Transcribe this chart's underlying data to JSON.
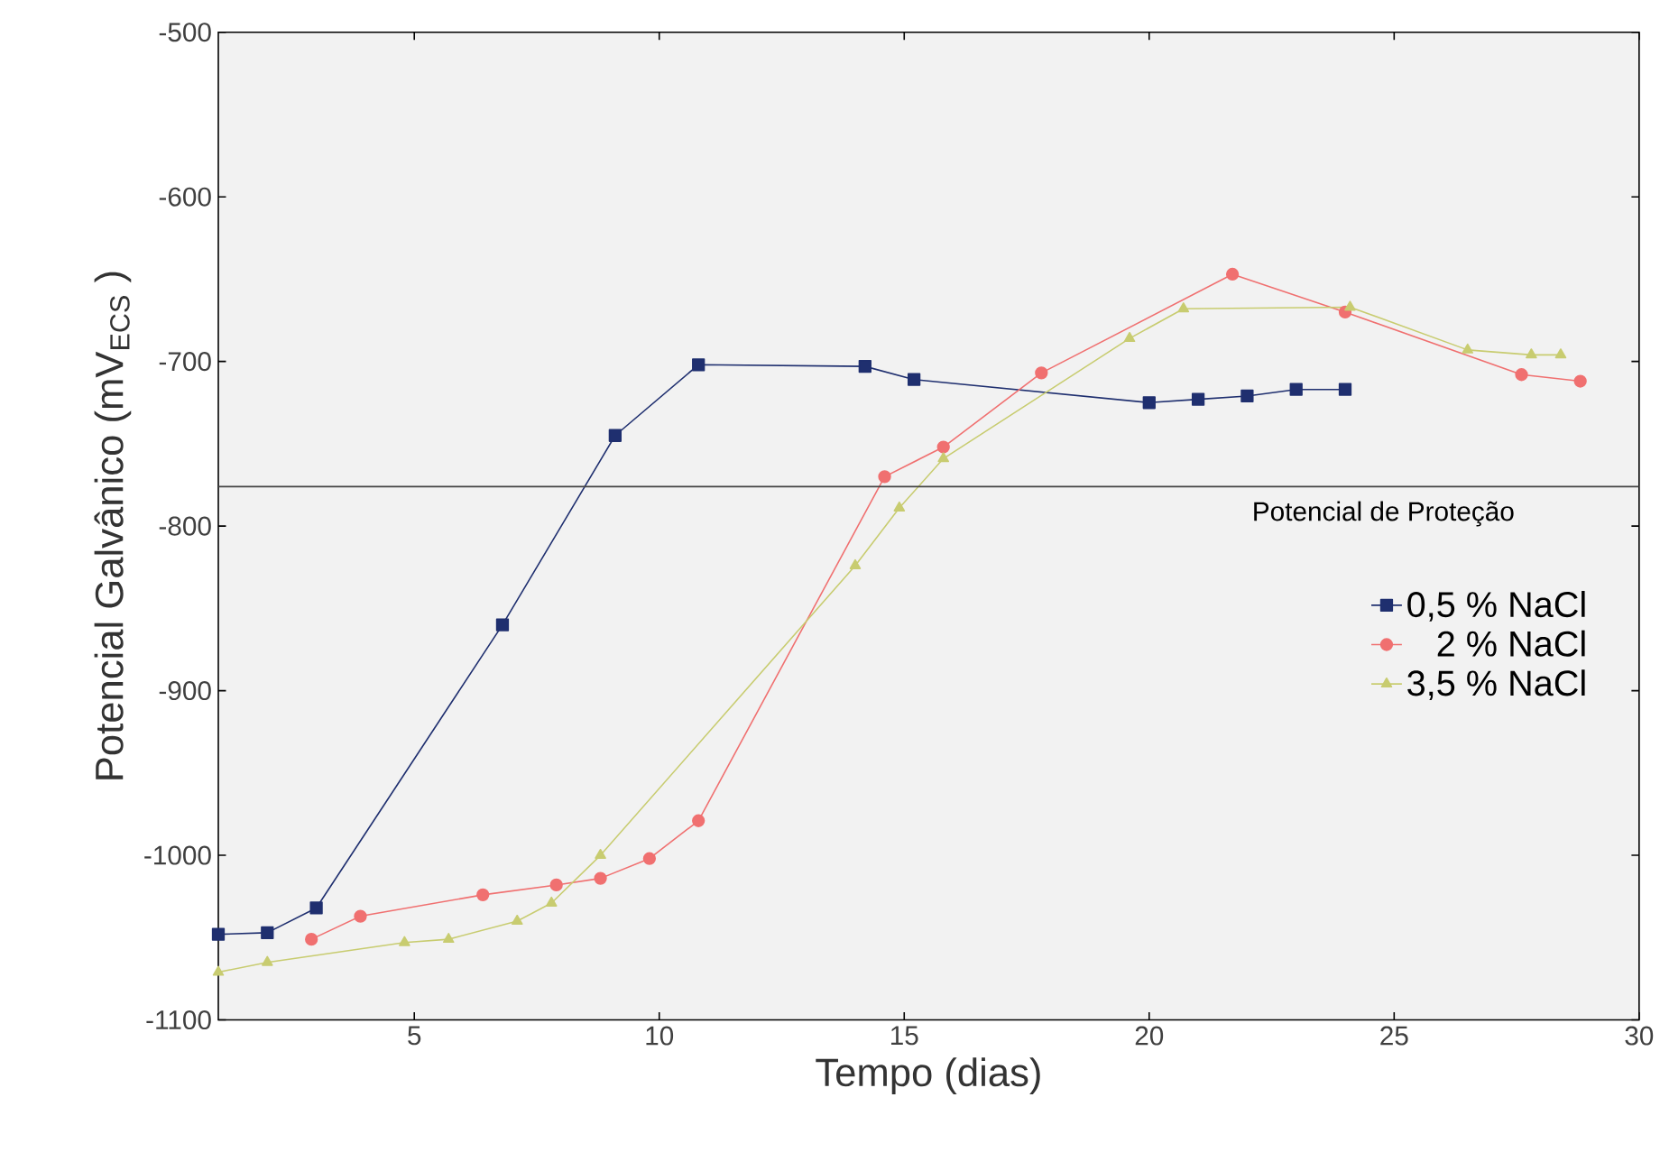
{
  "chart_data": {
    "type": "line",
    "xlabel": "Tempo (dias)",
    "ylabel": "Potencial Galvânico (mV$_{ECS}$ )",
    "xlim": [
      1,
      30
    ],
    "xticks": [
      5,
      10,
      15,
      20,
      25,
      30
    ],
    "ylim": [
      -1100,
      -500
    ],
    "yticks": [
      -1100,
      -1000,
      -900,
      -800,
      -700,
      -600,
      -500
    ],
    "grid": false,
    "legend": "right",
    "ref_lines": [
      {
        "axis": "y",
        "value": -776,
        "label": "Potencial de Proteção",
        "color": "#444444"
      }
    ],
    "series": [
      {
        "name": "0,5 % NaCl",
        "color": "#1f2f6f",
        "marker": "square",
        "x": [
          1,
          2,
          3,
          6.8,
          9.1,
          10.8,
          14.2,
          15.2,
          20,
          21,
          22,
          23,
          24
        ],
        "values": [
          -1048,
          -1047,
          -1032,
          -860,
          -745,
          -702,
          -703,
          -711,
          -725,
          -723,
          -721,
          -717,
          -717
        ]
      },
      {
        "name": "2 % NaCl",
        "color": "#f07070",
        "marker": "circle",
        "x": [
          2.9,
          3.9,
          6.4,
          7.9,
          8.8,
          9.8,
          10.8,
          14.6,
          15.8,
          17.8,
          21.7,
          24,
          27.6,
          28.8
        ],
        "values": [
          -1051,
          -1037,
          -1024,
          -1018,
          -1014,
          -1002,
          -979,
          -770,
          -752,
          -707,
          -647,
          -670,
          -708,
          -712
        ]
      },
      {
        "name": "3,5 % NaCl",
        "color": "#c8cc70",
        "marker": "triangle",
        "x": [
          1,
          2,
          4.8,
          5.7,
          7.1,
          7.8,
          8.8,
          14,
          14.9,
          15.8,
          19.6,
          20.7,
          24.1,
          26.5,
          27.8,
          28.4
        ],
        "values": [
          -1071,
          -1065,
          -1053,
          -1051,
          -1040,
          -1029,
          -1000,
          -824,
          -789,
          -759,
          -686,
          -668,
          -667,
          -693,
          -696,
          -696
        ]
      }
    ]
  }
}
